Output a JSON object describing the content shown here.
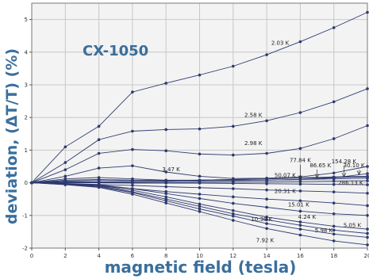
{
  "chart_data": {
    "type": "line",
    "title": "CX-1050",
    "xlabel": "magnetic field (tesla)",
    "ylabel": "deviation, (ΔT/T) (%)",
    "xlim": [
      0,
      20
    ],
    "ylim": [
      -2,
      5.5
    ],
    "x_ticks": [
      0,
      2,
      4,
      6,
      8,
      10,
      12,
      14,
      16,
      18,
      20
    ],
    "y_ticks": [
      -2,
      -1,
      0,
      1,
      2,
      3,
      4,
      5
    ],
    "grid": true,
    "x": [
      0,
      2,
      4,
      6,
      8,
      10,
      12,
      14,
      16,
      18,
      20
    ],
    "series": [
      {
        "name": "2.03 K",
        "values": [
          0,
          1.1,
          1.73,
          2.78,
          3.05,
          3.3,
          3.57,
          3.92,
          4.32,
          4.75,
          5.22
        ]
      },
      {
        "name": "2.58 K",
        "values": [
          0,
          0.62,
          1.32,
          1.58,
          1.63,
          1.65,
          1.73,
          1.9,
          2.15,
          2.48,
          2.88
        ]
      },
      {
        "name": "2.98 K",
        "values": [
          0,
          0.4,
          0.9,
          1.02,
          0.98,
          0.88,
          0.85,
          0.9,
          1.05,
          1.35,
          1.75
        ]
      },
      {
        "name": "3.47 K",
        "values": [
          0,
          0.2,
          0.45,
          0.52,
          0.33,
          0.2,
          0.13,
          0.14,
          0.18,
          0.3,
          0.5
        ]
      },
      {
        "name": "30.10 K",
        "values": [
          0,
          0.12,
          0.16,
          0.12,
          0.08,
          0.08,
          0.08,
          0.08,
          0.1,
          0.15,
          0.28
        ]
      },
      {
        "name": "154.28 K",
        "values": [
          0,
          0.08,
          0.1,
          0.08,
          0.07,
          0.08,
          0.1,
          0.12,
          0.15,
          0.18,
          0.2
        ]
      },
      {
        "name": "86.65 K",
        "values": [
          0,
          0.05,
          0.07,
          0.06,
          0.06,
          0.08,
          0.1,
          0.12,
          0.14,
          0.16,
          0.18
        ]
      },
      {
        "name": "77.84 K",
        "values": [
          0,
          0.03,
          0.03,
          0.03,
          0.04,
          0.05,
          0.06,
          0.08,
          0.1,
          0.12,
          0.14
        ]
      },
      {
        "name": "50.07 K",
        "values": [
          0,
          0.01,
          0.01,
          0.0,
          0.0,
          0.01,
          0.02,
          0.03,
          0.04,
          0.05,
          0.06
        ]
      },
      {
        "name": "286.13 K",
        "values": [
          0,
          0.0,
          0.0,
          -0.01,
          -0.01,
          -0.01,
          -0.02,
          -0.03,
          -0.04,
          -0.05,
          -0.06
        ]
      },
      {
        "name": "20.31 K",
        "values": [
          0,
          -0.02,
          -0.05,
          -0.08,
          -0.12,
          -0.15,
          -0.18,
          -0.22,
          -0.25,
          -0.28,
          -0.32
        ]
      },
      {
        "name": "15.01 K",
        "values": [
          0,
          -0.03,
          -0.08,
          -0.18,
          -0.27,
          -0.35,
          -0.43,
          -0.5,
          -0.55,
          -0.62,
          -0.7
        ]
      },
      {
        "name": "4.24 K",
        "values": [
          0,
          -0.03,
          -0.06,
          -0.18,
          -0.33,
          -0.48,
          -0.63,
          -0.75,
          -0.87,
          -0.95,
          -1.0
        ]
      },
      {
        "name": "10.38 K",
        "values": [
          0,
          -0.04,
          -0.08,
          -0.23,
          -0.43,
          -0.65,
          -0.85,
          -1.05,
          -1.2,
          -1.33,
          -1.42
        ]
      },
      {
        "name": "5.05 K",
        "values": [
          0,
          -0.04,
          -0.1,
          -0.28,
          -0.5,
          -0.72,
          -0.95,
          -1.13,
          -1.3,
          -1.45,
          -1.55
        ]
      },
      {
        "name": "5.98 K",
        "values": [
          0,
          -0.05,
          -0.12,
          -0.3,
          -0.55,
          -0.8,
          -1.02,
          -1.25,
          -1.42,
          -1.57,
          -1.67
        ]
      },
      {
        "name": "7.92 K",
        "values": [
          0,
          -0.06,
          -0.14,
          -0.35,
          -0.62,
          -0.88,
          -1.15,
          -1.4,
          -1.6,
          -1.78,
          -1.9
        ]
      }
    ],
    "annotations": [
      {
        "text": "2.03 K",
        "x": 14.8,
        "y": 4.22
      },
      {
        "text": "2.58 K",
        "x": 13.2,
        "y": 2.02
      },
      {
        "text": "2.98 K",
        "x": 13.2,
        "y": 1.16
      },
      {
        "text": "3.47 K",
        "x": 8.3,
        "y": 0.35
      },
      {
        "text": "77.84 K",
        "x": 16.0,
        "y": 0.63
      },
      {
        "text": "86.65 K",
        "x": 17.2,
        "y": 0.48
      },
      {
        "text": "154.28 K",
        "x": 18.6,
        "y": 0.6
      },
      {
        "text": "30.10 K",
        "x": 19.2,
        "y": 0.47
      },
      {
        "text": "50.07 K",
        "x": 15.1,
        "y": 0.17
      },
      {
        "text": "286.13 K",
        "x": 19.0,
        "y": -0.06
      },
      {
        "text": "20.31 K",
        "x": 15.1,
        "y": -0.31
      },
      {
        "text": "15.01 K",
        "x": 15.9,
        "y": -0.72
      },
      {
        "text": "4.24 K",
        "x": 16.4,
        "y": -1.1
      },
      {
        "text": "10.38 K",
        "x": 13.7,
        "y": -1.17
      },
      {
        "text": "5.05 K",
        "x": 19.1,
        "y": -1.36
      },
      {
        "text": "5.98 K",
        "x": 17.4,
        "y": -1.51
      },
      {
        "text": "7.92 K",
        "x": 13.9,
        "y": -1.82
      }
    ],
    "arrows": [
      {
        "label": "77.84 K",
        "to_x": 16.0,
        "to_y": 0.1
      },
      {
        "label": "86.65 K",
        "to_x": 17.0,
        "to_y": 0.15
      },
      {
        "label": "154.28 K",
        "to_x": 18.6,
        "to_y": 0.18
      },
      {
        "label": "30.10 K",
        "to_x": 19.5,
        "to_y": 0.25
      }
    ],
    "colors": {
      "axis_label": "#3a6f9c",
      "series": "#2e3a6e",
      "grid": "#c8c8c8",
      "plot_bg": "#f3f3f3"
    }
  }
}
